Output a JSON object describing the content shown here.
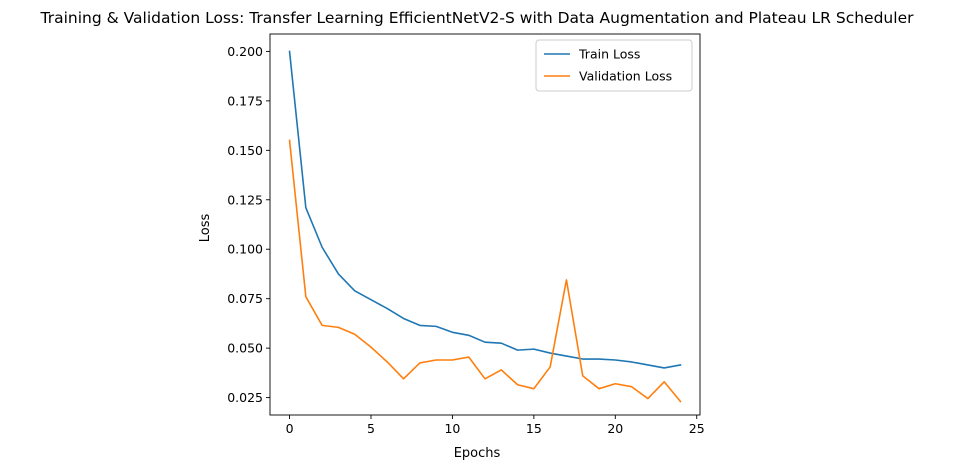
{
  "chart_data": {
    "type": "line",
    "title": "Training & Validation Loss: Transfer Learning EfficientNetV2-S with Data Augmentation and Plateau LR Scheduler",
    "xlabel": "Epochs",
    "ylabel": "Loss",
    "xlim": [
      -1.2,
      25.2
    ],
    "ylim": [
      0.0162,
      0.2088
    ],
    "xticks": [
      0,
      5,
      10,
      15,
      20,
      25
    ],
    "xtick_labels": [
      "0",
      "5",
      "10",
      "15",
      "20",
      "25"
    ],
    "yticks": [
      0.025,
      0.05,
      0.075,
      0.1,
      0.125,
      0.15,
      0.175,
      0.2
    ],
    "ytick_labels": [
      "0.025",
      "0.050",
      "0.075",
      "0.100",
      "0.125",
      "0.150",
      "0.175",
      "0.200"
    ],
    "grid": false,
    "legend_position": "top-right",
    "x": [
      0,
      1,
      2,
      3,
      4,
      5,
      6,
      7,
      8,
      9,
      10,
      11,
      12,
      13,
      14,
      15,
      16,
      17,
      18,
      19,
      20,
      21,
      22,
      23,
      24
    ],
    "series": [
      {
        "name": "Train Loss",
        "color": "#1f77b4",
        "values": [
          0.2,
          0.121,
          0.101,
          0.0875,
          0.079,
          0.0745,
          0.07,
          0.065,
          0.0615,
          0.061,
          0.058,
          0.0565,
          0.053,
          0.0525,
          0.049,
          0.0495,
          0.0475,
          0.046,
          0.0445,
          0.0445,
          0.044,
          0.043,
          0.0415,
          0.04,
          0.0415
        ]
      },
      {
        "name": "Validation Loss",
        "color": "#ff7f0e",
        "values": [
          0.155,
          0.076,
          0.0615,
          0.0605,
          0.057,
          0.0505,
          0.043,
          0.0345,
          0.0425,
          0.044,
          0.044,
          0.0455,
          0.0345,
          0.039,
          0.0315,
          0.0295,
          0.0405,
          0.0845,
          0.036,
          0.0295,
          0.032,
          0.0305,
          0.0245,
          0.033,
          0.023
        ]
      }
    ]
  }
}
